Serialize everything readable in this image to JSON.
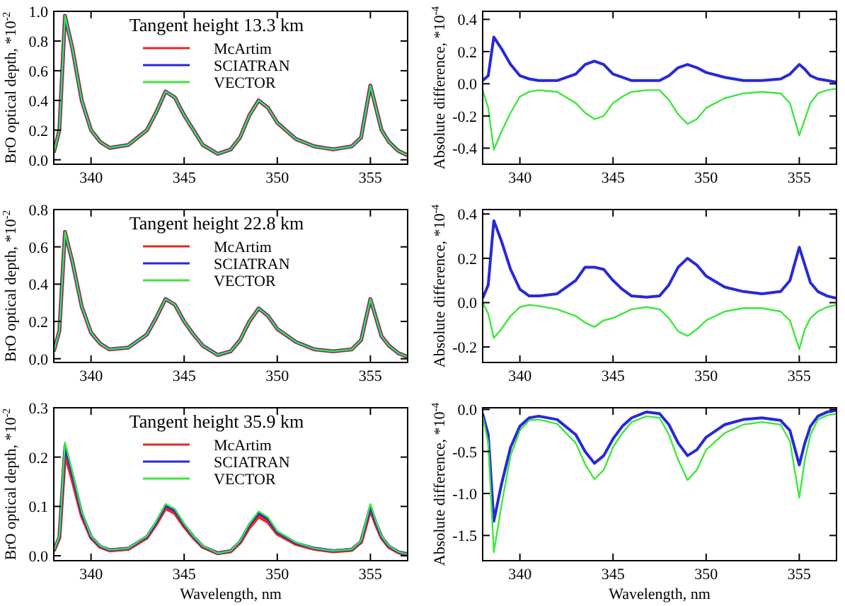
{
  "chart_data": [
    {
      "type": "line",
      "title": "Tangent height 13.3 km",
      "ylabel": "BrO optical depth, *10$^{-2}$",
      "legend": "top",
      "xlim": [
        338,
        357
      ],
      "xticks": [
        340,
        345,
        350,
        355
      ],
      "ylim": [
        -0.03,
        1.0
      ],
      "yticks": [
        {
          "value": 0,
          "label": "0.0"
        },
        {
          "value": 0.2,
          "label": "0.2"
        },
        {
          "value": 0.4,
          "label": "0.4"
        },
        {
          "value": 0.6,
          "label": "0.6"
        },
        {
          "value": 0.8,
          "label": "0.8"
        },
        {
          "value": 1,
          "label": "1.0"
        }
      ],
      "x": [
        338,
        338.3,
        338.6,
        339,
        339.5,
        340,
        340.5,
        341,
        342,
        343,
        343.5,
        344,
        344.5,
        345,
        345.5,
        346,
        346.8,
        347.5,
        348,
        348.5,
        349,
        349.5,
        350,
        351,
        352,
        353,
        354,
        354.5,
        355,
        355.3,
        355.6,
        356,
        356.5,
        357
      ],
      "series": [
        {
          "name": "McArtim",
          "color": "#e8281e",
          "values": [
            0.05,
            0.2,
            0.97,
            0.75,
            0.4,
            0.2,
            0.12,
            0.08,
            0.1,
            0.2,
            0.32,
            0.46,
            0.42,
            0.3,
            0.2,
            0.1,
            0.04,
            0.07,
            0.15,
            0.3,
            0.4,
            0.35,
            0.25,
            0.14,
            0.09,
            0.07,
            0.09,
            0.15,
            0.5,
            0.35,
            0.2,
            0.12,
            0.06,
            0.03
          ]
        },
        {
          "name": "SCIATRAN",
          "color": "#2828d8",
          "values": [
            0.05,
            0.2,
            0.97,
            0.75,
            0.4,
            0.2,
            0.12,
            0.08,
            0.1,
            0.2,
            0.32,
            0.46,
            0.42,
            0.3,
            0.2,
            0.1,
            0.04,
            0.07,
            0.15,
            0.3,
            0.4,
            0.35,
            0.25,
            0.14,
            0.09,
            0.07,
            0.09,
            0.15,
            0.5,
            0.35,
            0.2,
            0.12,
            0.06,
            0.03
          ]
        },
        {
          "name": "VECTOR",
          "color": "#3ce83c",
          "values": [
            0.05,
            0.2,
            0.97,
            0.75,
            0.4,
            0.2,
            0.12,
            0.08,
            0.1,
            0.2,
            0.32,
            0.46,
            0.42,
            0.3,
            0.2,
            0.1,
            0.04,
            0.07,
            0.15,
            0.3,
            0.4,
            0.35,
            0.25,
            0.14,
            0.09,
            0.07,
            0.09,
            0.15,
            0.5,
            0.35,
            0.2,
            0.12,
            0.06,
            0.03
          ]
        }
      ]
    },
    {
      "type": "line",
      "ylabel": "Absolute difference, *10$^{-4}$",
      "xlim": [
        338,
        357
      ],
      "xticks": [
        340,
        345,
        350,
        355
      ],
      "ylim": [
        -0.5,
        0.45
      ],
      "yticks": [
        {
          "value": -0.4,
          "label": "-0.4"
        },
        {
          "value": -0.2,
          "label": "-0.2"
        },
        {
          "value": 0,
          "label": "0.0"
        },
        {
          "value": 0.2,
          "label": "0.2"
        },
        {
          "value": 0.4,
          "label": "0.4"
        }
      ],
      "x": [
        338,
        338.3,
        338.6,
        339,
        339.5,
        340,
        340.5,
        341,
        342,
        343,
        343.5,
        344,
        344.5,
        345,
        345.5,
        346,
        346.8,
        347.5,
        348,
        348.5,
        349,
        349.5,
        350,
        351,
        352,
        353,
        354,
        354.5,
        355,
        355.3,
        355.6,
        356,
        356.5,
        357
      ],
      "series": [
        {
          "color": "#2828d8",
          "values": [
            0.02,
            0.05,
            0.29,
            0.22,
            0.12,
            0.05,
            0.03,
            0.02,
            0.02,
            0.06,
            0.12,
            0.14,
            0.12,
            0.06,
            0.04,
            0.02,
            0.02,
            0.02,
            0.05,
            0.1,
            0.12,
            0.1,
            0.07,
            0.04,
            0.02,
            0.02,
            0.03,
            0.06,
            0.12,
            0.09,
            0.05,
            0.03,
            0.02,
            0.01
          ]
        },
        {
          "color": "#3ce83c",
          "values": [
            -0.04,
            -0.15,
            -0.41,
            -0.3,
            -0.18,
            -0.08,
            -0.05,
            -0.04,
            -0.05,
            -0.12,
            -0.18,
            -0.22,
            -0.2,
            -0.12,
            -0.08,
            -0.05,
            -0.04,
            -0.04,
            -0.1,
            -0.19,
            -0.25,
            -0.22,
            -0.15,
            -0.09,
            -0.06,
            -0.05,
            -0.06,
            -0.12,
            -0.32,
            -0.22,
            -0.12,
            -0.06,
            -0.04,
            -0.03
          ]
        }
      ]
    },
    {
      "type": "line",
      "title": "Tangent height 22.8 km",
      "ylabel": "BrO optical depth, *10$^{-2}$",
      "legend": "top",
      "xlim": [
        338,
        357
      ],
      "xticks": [
        340,
        345,
        350,
        355
      ],
      "ylim": [
        -0.02,
        0.8
      ],
      "yticks": [
        {
          "value": 0,
          "label": "0.0"
        },
        {
          "value": 0.2,
          "label": "0.2"
        },
        {
          "value": 0.4,
          "label": "0.4"
        },
        {
          "value": 0.6,
          "label": "0.6"
        },
        {
          "value": 0.8,
          "label": "0.8"
        }
      ],
      "x": [
        338,
        338.3,
        338.6,
        339,
        339.5,
        340,
        340.5,
        341,
        342,
        343,
        343.5,
        344,
        344.5,
        345,
        345.5,
        346,
        346.8,
        347.5,
        348,
        348.5,
        349,
        349.5,
        350,
        351,
        352,
        353,
        354,
        354.5,
        355,
        355.3,
        355.6,
        356,
        356.5,
        357
      ],
      "series": [
        {
          "name": "McArtim",
          "color": "#e8281e",
          "values": [
            0.04,
            0.15,
            0.68,
            0.52,
            0.28,
            0.14,
            0.08,
            0.05,
            0.06,
            0.13,
            0.22,
            0.32,
            0.29,
            0.2,
            0.13,
            0.07,
            0.02,
            0.04,
            0.1,
            0.2,
            0.27,
            0.23,
            0.16,
            0.09,
            0.05,
            0.04,
            0.05,
            0.1,
            0.32,
            0.22,
            0.12,
            0.07,
            0.03,
            0.01
          ]
        },
        {
          "name": "SCIATRAN",
          "color": "#2828d8",
          "values": [
            0.04,
            0.15,
            0.68,
            0.52,
            0.28,
            0.14,
            0.08,
            0.05,
            0.06,
            0.13,
            0.22,
            0.32,
            0.29,
            0.2,
            0.13,
            0.07,
            0.02,
            0.04,
            0.1,
            0.2,
            0.27,
            0.23,
            0.16,
            0.09,
            0.05,
            0.04,
            0.05,
            0.1,
            0.32,
            0.22,
            0.12,
            0.07,
            0.03,
            0.01
          ]
        },
        {
          "name": "VECTOR",
          "color": "#3ce83c",
          "values": [
            0.04,
            0.15,
            0.68,
            0.52,
            0.28,
            0.14,
            0.08,
            0.05,
            0.06,
            0.13,
            0.22,
            0.32,
            0.29,
            0.2,
            0.13,
            0.07,
            0.02,
            0.04,
            0.1,
            0.2,
            0.27,
            0.23,
            0.16,
            0.09,
            0.05,
            0.04,
            0.05,
            0.1,
            0.32,
            0.22,
            0.12,
            0.07,
            0.03,
            0.01
          ]
        }
      ]
    },
    {
      "type": "line",
      "ylabel": "Absolute difference, *10$^{-4}$",
      "xlim": [
        338,
        357
      ],
      "xticks": [
        340,
        345,
        350,
        355
      ],
      "ylim": [
        -0.27,
        0.42
      ],
      "yticks": [
        {
          "value": -0.2,
          "label": "-0.2"
        },
        {
          "value": 0,
          "label": "0.0"
        },
        {
          "value": 0.2,
          "label": "0.2"
        },
        {
          "value": 0.4,
          "label": "0.4"
        }
      ],
      "x": [
        338,
        338.3,
        338.6,
        339,
        339.5,
        340,
        340.5,
        341,
        342,
        343,
        343.5,
        344,
        344.5,
        345,
        345.5,
        346,
        346.8,
        347.5,
        348,
        348.5,
        349,
        349.5,
        350,
        351,
        352,
        353,
        354,
        354.5,
        355,
        355.3,
        355.6,
        356,
        356.5,
        357
      ],
      "series": [
        {
          "color": "#2828d8",
          "values": [
            0.02,
            0.08,
            0.37,
            0.28,
            0.15,
            0.06,
            0.03,
            0.03,
            0.04,
            0.1,
            0.16,
            0.16,
            0.15,
            0.1,
            0.06,
            0.03,
            0.025,
            0.03,
            0.08,
            0.16,
            0.2,
            0.17,
            0.12,
            0.07,
            0.05,
            0.04,
            0.05,
            0.1,
            0.25,
            0.17,
            0.09,
            0.05,
            0.03,
            0.02
          ]
        },
        {
          "color": "#3ce83c",
          "values": [
            0,
            -0.05,
            -0.16,
            -0.12,
            -0.06,
            -0.02,
            -0.01,
            -0.015,
            -0.03,
            -0.06,
            -0.09,
            -0.11,
            -0.08,
            -0.07,
            -0.05,
            -0.03,
            -0.02,
            -0.03,
            -0.07,
            -0.13,
            -0.15,
            -0.12,
            -0.08,
            -0.04,
            -0.025,
            -0.025,
            -0.04,
            -0.08,
            -0.21,
            -0.12,
            -0.07,
            -0.04,
            -0.02,
            -0.01
          ]
        }
      ]
    },
    {
      "type": "line",
      "title": "Tangent height 35.9 km",
      "xlabel": "Wavelength, nm",
      "ylabel": "BrO optical depth, *10$^{-2}$",
      "legend": "top",
      "xlim": [
        338,
        357
      ],
      "xticks": [
        340,
        345,
        350,
        355
      ],
      "ylim": [
        -0.01,
        0.3
      ],
      "yticks": [
        {
          "value": 0,
          "label": "0.0"
        },
        {
          "value": 0.1,
          "label": "0.1"
        },
        {
          "value": 0.2,
          "label": "0.2"
        },
        {
          "value": 0.3,
          "label": "0.3"
        }
      ],
      "x": [
        338,
        338.3,
        338.6,
        339,
        339.5,
        340,
        340.5,
        341,
        342,
        343,
        343.5,
        344,
        344.5,
        345,
        345.5,
        346,
        346.8,
        347.5,
        348,
        348.5,
        349,
        349.5,
        350,
        351,
        352,
        353,
        354,
        354.5,
        355,
        355.3,
        355.6,
        356,
        356.5,
        357
      ],
      "series": [
        {
          "name": "McArtim",
          "color": "#e8281e",
          "values": [
            0.01,
            0.037,
            0.21,
            0.155,
            0.082,
            0.037,
            0.018,
            0.011,
            0.014,
            0.037,
            0.065,
            0.097,
            0.087,
            0.06,
            0.037,
            0.018,
            0.005,
            0.009,
            0.027,
            0.058,
            0.08,
            0.069,
            0.045,
            0.024,
            0.014,
            0.009,
            0.012,
            0.028,
            0.095,
            0.064,
            0.037,
            0.018,
            0.007,
            0.003
          ]
        },
        {
          "name": "SCIATRAN",
          "color": "#2828d8",
          "values": [
            0.01,
            0.039,
            0.223,
            0.165,
            0.087,
            0.039,
            0.019,
            0.012,
            0.015,
            0.039,
            0.068,
            0.102,
            0.092,
            0.063,
            0.039,
            0.019,
            0.005,
            0.01,
            0.029,
            0.063,
            0.087,
            0.075,
            0.048,
            0.026,
            0.015,
            0.01,
            0.013,
            0.029,
            0.1,
            0.067,
            0.039,
            0.019,
            0.008,
            0.003
          ]
        },
        {
          "name": "VECTOR",
          "color": "#3ce83c",
          "values": [
            0.01,
            0.04,
            0.23,
            0.17,
            0.09,
            0.04,
            0.02,
            0.012,
            0.015,
            0.04,
            0.07,
            0.105,
            0.095,
            0.065,
            0.04,
            0.02,
            0.005,
            0.01,
            0.03,
            0.065,
            0.09,
            0.078,
            0.05,
            0.027,
            0.015,
            0.01,
            0.013,
            0.03,
            0.105,
            0.07,
            0.04,
            0.02,
            0.008,
            0.003
          ]
        }
      ]
    },
    {
      "type": "line",
      "xlabel": "Wavelength, nm",
      "ylabel": "Absolute difference, *10$^{-4}$",
      "xlim": [
        338,
        357
      ],
      "xticks": [
        340,
        345,
        350,
        355
      ],
      "ylim": [
        -1.8,
        0.02
      ],
      "yticks": [
        {
          "value": -1.5,
          "label": "-1.5"
        },
        {
          "value": -1,
          "label": "-1.0"
        },
        {
          "value": -0.5,
          "label": "-0.5"
        },
        {
          "value": 0,
          "label": "0.0"
        }
      ],
      "x": [
        338,
        338.3,
        338.6,
        339,
        339.5,
        340,
        340.5,
        341,
        342,
        343,
        343.5,
        344,
        344.5,
        345,
        345.5,
        346,
        346.8,
        347.5,
        348,
        348.5,
        349,
        349.5,
        350,
        351,
        352,
        353,
        354,
        354.5,
        355,
        355.3,
        355.6,
        356,
        356.5,
        357
      ],
      "series": [
        {
          "color": "#2828d8",
          "values": [
            -0.05,
            -0.3,
            -1.33,
            -0.9,
            -0.45,
            -0.2,
            -0.1,
            -0.08,
            -0.12,
            -0.3,
            -0.5,
            -0.64,
            -0.55,
            -0.35,
            -0.2,
            -0.1,
            -0.03,
            -0.05,
            -0.18,
            -0.4,
            -0.55,
            -0.48,
            -0.33,
            -0.18,
            -0.12,
            -0.1,
            -0.13,
            -0.25,
            -0.66,
            -0.4,
            -0.2,
            -0.08,
            -0.03,
            -0.01
          ]
        },
        {
          "color": "#3ce83c",
          "values": [
            -0.08,
            -0.4,
            -1.7,
            -1.15,
            -0.55,
            -0.25,
            -0.13,
            -0.12,
            -0.17,
            -0.4,
            -0.65,
            -0.83,
            -0.72,
            -0.45,
            -0.28,
            -0.15,
            -0.08,
            -0.1,
            -0.3,
            -0.6,
            -0.84,
            -0.72,
            -0.48,
            -0.28,
            -0.18,
            -0.15,
            -0.18,
            -0.38,
            -1.05,
            -0.6,
            -0.3,
            -0.12,
            -0.07,
            -0.05
          ]
        }
      ]
    }
  ]
}
